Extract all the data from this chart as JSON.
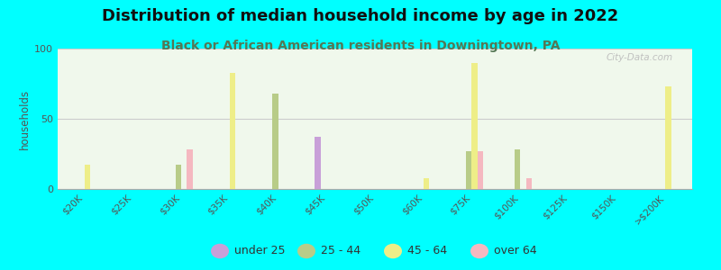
{
  "title": "Distribution of median household income by age in 2022",
  "subtitle": "Black or African American residents in Downingtown, PA",
  "ylabel": "households",
  "background_color": "#00FFFF",
  "ylim": [
    0,
    100
  ],
  "yticks": [
    0,
    50,
    100
  ],
  "categories": [
    "$20K",
    "$25K",
    "$30K",
    "$35K",
    "$40K",
    "$45K",
    "$50K",
    "$60K",
    "$75K",
    "$100K",
    "$125K",
    "$150K",
    ">$200K"
  ],
  "series": {
    "under 25": {
      "color": "#c8a0d8",
      "values": [
        0,
        0,
        0,
        0,
        0,
        37,
        0,
        0,
        0,
        0,
        0,
        0,
        0
      ]
    },
    "25 - 44": {
      "color": "#b8cc88",
      "values": [
        0,
        0,
        17,
        0,
        68,
        0,
        0,
        0,
        27,
        28,
        0,
        0,
        0
      ]
    },
    "45 - 64": {
      "color": "#eeee88",
      "values": [
        17,
        0,
        0,
        83,
        0,
        0,
        0,
        8,
        90,
        0,
        0,
        0,
        73
      ]
    },
    "over 64": {
      "color": "#f5b8c0",
      "values": [
        0,
        0,
        28,
        0,
        0,
        0,
        0,
        0,
        27,
        8,
        0,
        0,
        0
      ]
    }
  },
  "legend_order": [
    "under 25",
    "25 - 44",
    "45 - 64",
    "over 64"
  ],
  "title_fontsize": 13,
  "subtitle_fontsize": 10,
  "subtitle_color": "#557755",
  "title_color": "#111111",
  "watermark": "City-Data.com"
}
